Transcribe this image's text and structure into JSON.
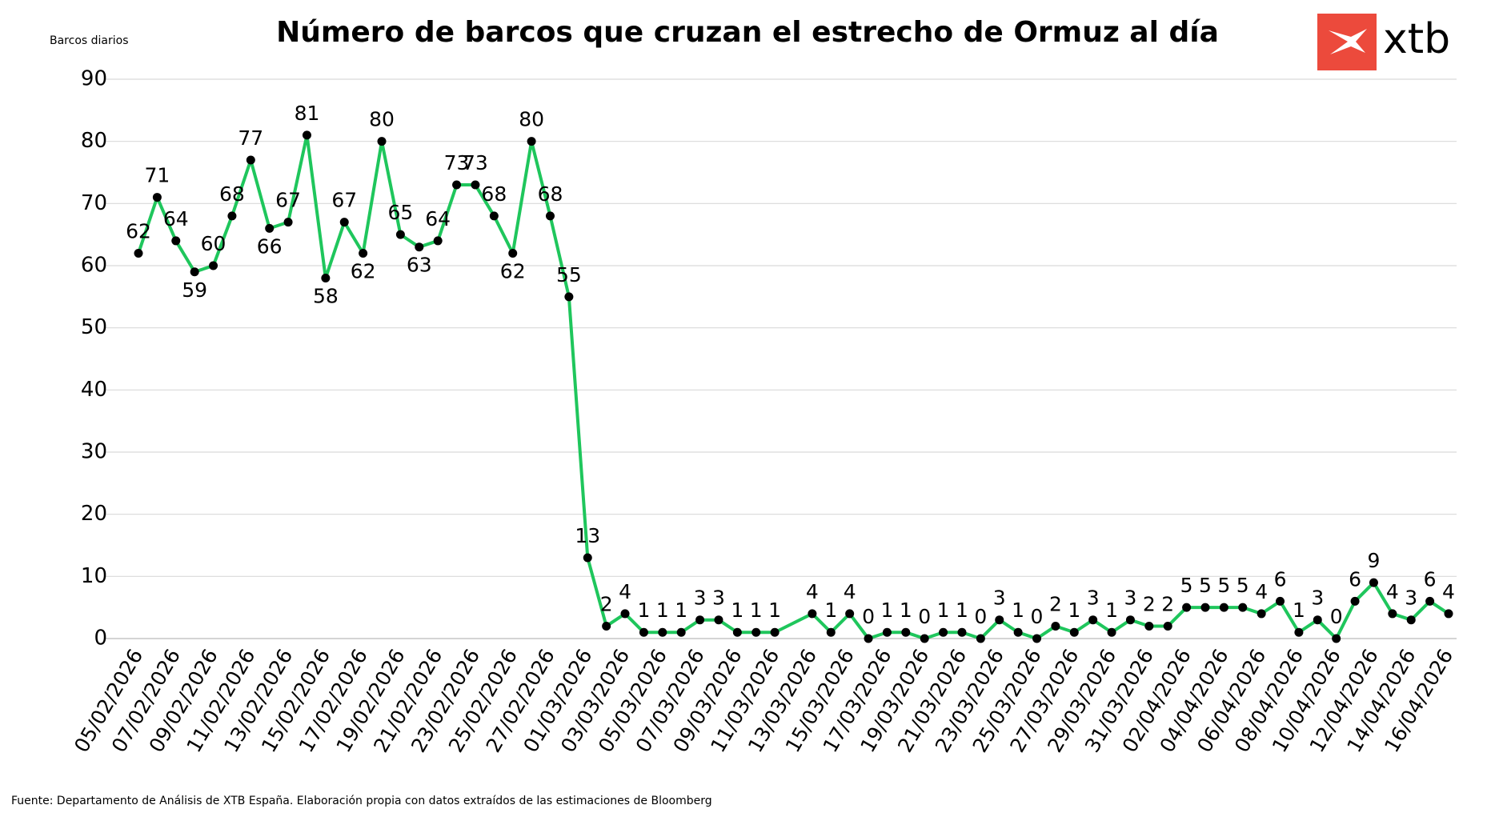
{
  "chart_data": {
    "type": "line",
    "title": "Número de barcos que cruzan el estrecho de Ormuz al día",
    "y_label": "Barcos diarios",
    "source": "Fuente: Departamento de Análisis de XTB España. Elaboración propia con datos extraídos de las estimaciones de Bloomberg",
    "logo": "xtb",
    "x": [
      "05/02/2026",
      "06/02/2026",
      "07/02/2026",
      "08/02/2026",
      "09/02/2026",
      "10/02/2026",
      "11/02/2026",
      "12/02/2026",
      "13/02/2026",
      "14/02/2026",
      "15/02/2026",
      "16/02/2026",
      "17/02/2026",
      "18/02/2026",
      "19/02/2026",
      "20/02/2026",
      "21/02/2026",
      "22/02/2026",
      "23/02/2026",
      "24/02/2026",
      "25/02/2026",
      "26/02/2026",
      "27/02/2026",
      "28/02/2026",
      "01/03/2026",
      "02/03/2026",
      "03/03/2026",
      "04/03/2026",
      "05/03/2026",
      "06/03/2026",
      "07/03/2026",
      "08/03/2026",
      "09/03/2026",
      "10/03/2026",
      "11/03/2026",
      "13/03/2026",
      "14/03/2026",
      "15/03/2026",
      "16/03/2026",
      "17/03/2026",
      "18/03/2026",
      "19/03/2026",
      "20/03/2026",
      "21/03/2026",
      "22/03/2026",
      "23/03/2026",
      "24/03/2026",
      "25/03/2026",
      "26/03/2026",
      "27/03/2026",
      "28/03/2026",
      "29/03/2026",
      "30/03/2026",
      "31/03/2026",
      "01/04/2026",
      "02/04/2026",
      "03/04/2026",
      "04/04/2026",
      "05/04/2026",
      "06/04/2026",
      "07/04/2026",
      "08/04/2026",
      "09/04/2026",
      "10/04/2026",
      "11/04/2026",
      "12/04/2026",
      "13/04/2026",
      "14/04/2026",
      "15/04/2026",
      "16/04/2026"
    ],
    "series": [
      {
        "name": "Barcos diarios",
        "color": "#1fc65c",
        "values": [
          62,
          71,
          64,
          59,
          60,
          68,
          77,
          66,
          67,
          81,
          58,
          67,
          62,
          80,
          65,
          63,
          64,
          73,
          73,
          68,
          62,
          80,
          68,
          55,
          13,
          2,
          4,
          1,
          1,
          1,
          3,
          3,
          1,
          1,
          1,
          4,
          1,
          4,
          0,
          1,
          1,
          0,
          1,
          1,
          0,
          3,
          1,
          0,
          2,
          1,
          3,
          1,
          3,
          2,
          2,
          5,
          5,
          5,
          5,
          4,
          6,
          1,
          3,
          0,
          6,
          9,
          4,
          3,
          6,
          4
        ]
      }
    ],
    "xlim": [
      "05/02/2026",
      "16/04/2026"
    ],
    "xticks": [
      "05/02/2026",
      "07/02/2026",
      "09/02/2026",
      "11/02/2026",
      "13/02/2026",
      "15/02/2026",
      "17/02/2026",
      "19/02/2026",
      "21/02/2026",
      "23/02/2026",
      "25/02/2026",
      "27/02/2026",
      "01/03/2026",
      "03/03/2026",
      "05/03/2026",
      "07/03/2026",
      "09/03/2026",
      "11/03/2026",
      "13/03/2026",
      "15/03/2026",
      "17/03/2026",
      "19/03/2026",
      "21/03/2026",
      "23/03/2026",
      "25/03/2026",
      "27/03/2026",
      "29/03/2026",
      "31/03/2026",
      "02/04/2026",
      "04/04/2026",
      "06/04/2026",
      "08/04/2026",
      "10/04/2026",
      "12/04/2026",
      "14/04/2026",
      "16/04/2026"
    ],
    "ylim": [
      0,
      90
    ],
    "yticks": [
      0,
      10,
      20,
      30,
      40,
      50,
      60,
      70,
      80,
      90
    ],
    "grid": true
  }
}
